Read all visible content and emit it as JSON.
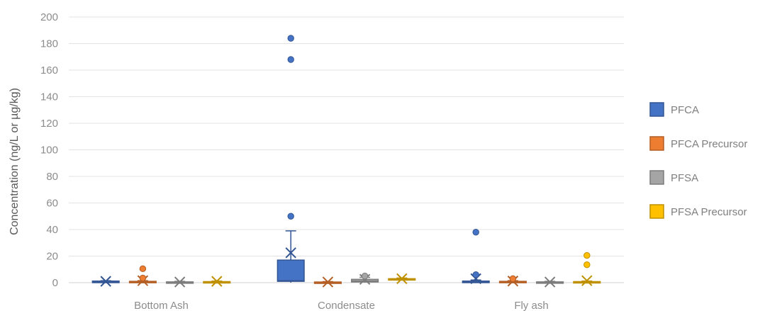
{
  "chart_data": {
    "type": "box",
    "ylabel": "Concentration (ng/L or µg/kg)",
    "ylim": [
      0,
      200
    ],
    "yticks": [
      0,
      20,
      40,
      60,
      80,
      100,
      120,
      140,
      160,
      180,
      200
    ],
    "grid": true,
    "legend_position": "right",
    "categories": [
      "Bottom Ash",
      "Condensate",
      "Fly ash"
    ],
    "series": [
      {
        "name": "PFCA",
        "color": "#4472c4",
        "boxes": [
          {
            "q1": 0,
            "median": 0.3,
            "q3": 1.2,
            "whisker_low": 0,
            "whisker_high": 1.5,
            "mean": 1.0,
            "outliers": []
          },
          {
            "q1": 1,
            "median": 1.5,
            "q3": 17,
            "whisker_low": 0,
            "whisker_high": 39,
            "mean": 22.5,
            "outliers": [
              50,
              168,
              184
            ]
          },
          {
            "q1": 0,
            "median": 0.3,
            "q3": 1.2,
            "whisker_low": 0,
            "whisker_high": 2,
            "mean": 3,
            "outliers": [
              6,
              38
            ]
          }
        ]
      },
      {
        "name": "PFCA Precursor",
        "color": "#ed7d31",
        "boxes": [
          {
            "q1": 0,
            "median": 0.3,
            "q3": 1,
            "whisker_low": 0,
            "whisker_high": 1.5,
            "mean": 1.5,
            "outliers": [
              3.5,
              10.5
            ]
          },
          {
            "q1": 0,
            "median": 0.2,
            "q3": 0.5,
            "whisker_low": 0,
            "whisker_high": 0.8,
            "mean": 0.5,
            "outliers": []
          },
          {
            "q1": 0,
            "median": 0.3,
            "q3": 1,
            "whisker_low": 0,
            "whisker_high": 1.5,
            "mean": 1.2,
            "outliers": [
              3
            ]
          }
        ]
      },
      {
        "name": "PFSA",
        "color": "#a5a5a5",
        "boxes": [
          {
            "q1": 0,
            "median": 0.2,
            "q3": 0.6,
            "whisker_low": 0,
            "whisker_high": 1,
            "mean": 0.5,
            "outliers": []
          },
          {
            "q1": 0.5,
            "median": 1.2,
            "q3": 2.5,
            "whisker_low": 0,
            "whisker_high": 4,
            "mean": 2.5,
            "outliers": [
              5
            ]
          },
          {
            "q1": 0,
            "median": 0.2,
            "q3": 0.6,
            "whisker_low": 0,
            "whisker_high": 1,
            "mean": 0.5,
            "outliers": []
          }
        ]
      },
      {
        "name": "PFSA Precursor",
        "color": "#ffc000",
        "boxes": [
          {
            "q1": 0,
            "median": 0.3,
            "q3": 0.8,
            "whisker_low": 0,
            "whisker_high": 1.2,
            "mean": 1,
            "outliers": []
          },
          {
            "q1": 2,
            "median": 2.5,
            "q3": 3,
            "whisker_low": 1.5,
            "whisker_high": 3.5,
            "mean": 3,
            "outliers": []
          },
          {
            "q1": 0,
            "median": 0.3,
            "q3": 0.8,
            "whisker_low": 0,
            "whisker_high": 1.2,
            "mean": 1.5,
            "outliers": [
              13.5,
              20.5
            ]
          }
        ]
      }
    ]
  }
}
